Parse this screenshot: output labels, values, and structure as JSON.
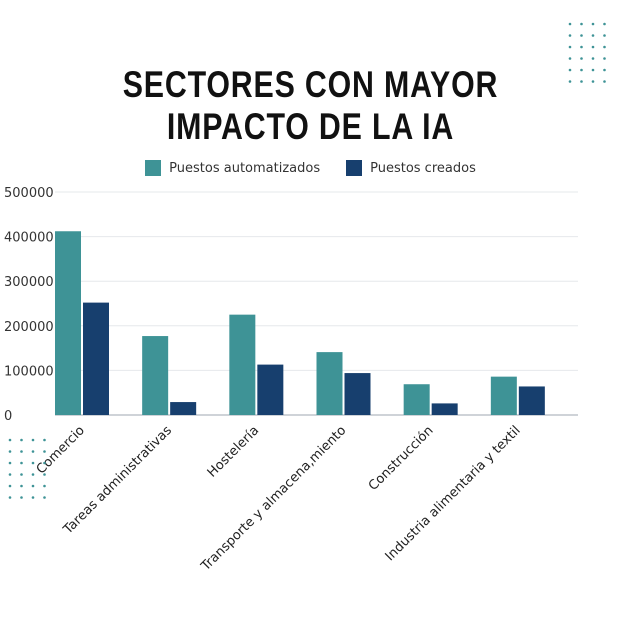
{
  "chart_data": {
    "type": "bar",
    "title": "SECTORES CON MAYOR IMPACTO DE LA IA",
    "title_lines": [
      "SECTORES CON MAYOR",
      "IMPACTO DE LA IA"
    ],
    "categories": [
      "Comercio",
      "Tareas administrativas",
      "Hostelería",
      "Transporte y almacena,miento",
      "Construcción",
      "Industria alimentaria y textil"
    ],
    "series": [
      {
        "name": "Puestos automatizados",
        "color": "#3E9396",
        "values": [
          412000,
          177000,
          225000,
          141000,
          69000,
          86000
        ]
      },
      {
        "name": "Puestos creados",
        "color": "#173F6E",
        "values": [
          252000,
          29000,
          113000,
          94000,
          26000,
          64000
        ]
      }
    ],
    "yticks": [
      "0",
      "100000",
      "200000",
      "300000",
      "400000",
      "500000"
    ],
    "ylim": [
      0,
      500000
    ],
    "grid": true,
    "legend": "top"
  }
}
